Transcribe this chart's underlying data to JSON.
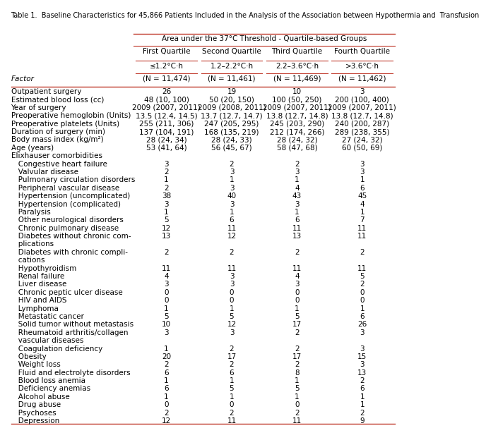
{
  "title": "Table 1.  Baseline Characteristics for 45,866 Patients Included in the Analysis of the Association between Hypothermia and  Transfusion",
  "header_top": "Area under the 37°C Threshold - Quartile-based Groups",
  "col_headers": [
    "First Quartile",
    "Second Quartile",
    "Third Quartile",
    "Fourth Quartile"
  ],
  "col_subheaders": [
    "≤1.2°C·h",
    "1.2–2.2°C·h",
    "2.2–3.6°C·h",
    ">3.6°C·h"
  ],
  "col_n": [
    "(N = 11,474)",
    "(N = 11,461)",
    "(N = 11,469)",
    "(N = 11,462)"
  ],
  "row_label_header": "Factor",
  "rows": [
    [
      "Outpatient surgery",
      "26",
      "19",
      "10",
      "3"
    ],
    [
      "Estimated blood loss (cc)",
      "48 (10, 100)",
      "50 (20, 150)",
      "100 (50, 250)",
      "200 (100, 400)"
    ],
    [
      "Year of surgery",
      "2009 (2007, 2011)",
      "2009 (2008, 2011)",
      "2009 (2007, 2011)",
      "2009 (2007, 2011)"
    ],
    [
      "Preoperative hemoglobin (Units)",
      "13.5 (12.4, 14.5)",
      "13.7 (12.7, 14.7)",
      "13.8 (12.7, 14.8)",
      "13.8 (12.7, 14.8)"
    ],
    [
      "Preoperative platelets (Units)",
      "255 (211, 306)",
      "247 (205, 295)",
      "245 (203, 290)",
      "240 (200, 287)"
    ],
    [
      "Duration of surgery (min)",
      "137 (104, 191)",
      "168 (135, 219)",
      "212 (174, 266)",
      "289 (238, 355)"
    ],
    [
      "Body mass index (kg/m²)",
      "28 (24, 34)",
      "28 (24, 33)",
      "28 (24, 32)",
      "27 (24, 32)"
    ],
    [
      "Age (years)",
      "53 (41, 64)",
      "56 (45, 67)",
      "58 (47, 68)",
      "60 (50, 69)"
    ],
    [
      "Elixhauser comorbidities",
      "",
      "",
      "",
      ""
    ],
    [
      "   Congestive heart failure",
      "3",
      "2",
      "2",
      "3"
    ],
    [
      "   Valvular disease",
      "2",
      "3",
      "3",
      "3"
    ],
    [
      "   Pulmonary circulation disorders",
      "1",
      "1",
      "1",
      "1"
    ],
    [
      "   Peripheral vascular disease",
      "2",
      "3",
      "4",
      "6"
    ],
    [
      "   Hypertension (uncomplicated)",
      "38",
      "40",
      "43",
      "45"
    ],
    [
      "   Hypertension (complicated)",
      "3",
      "3",
      "3",
      "4"
    ],
    [
      "   Paralysis",
      "1",
      "1",
      "1",
      "1"
    ],
    [
      "   Other neurological disorders",
      "5",
      "6",
      "6",
      "7"
    ],
    [
      "   Chronic pulmonary disease",
      "12",
      "11",
      "11",
      "11"
    ],
    [
      "   Diabetes without chronic com-\n   plications",
      "13",
      "12",
      "13",
      "11"
    ],
    [
      "   Diabetes with chronic compli-\n   cations",
      "2",
      "2",
      "2",
      "2"
    ],
    [
      "   Hypothyroidism",
      "11",
      "11",
      "11",
      "11"
    ],
    [
      "   Renal failure",
      "4",
      "3",
      "4",
      "5"
    ],
    [
      "   Liver disease",
      "3",
      "3",
      "3",
      "2"
    ],
    [
      "   Chronic peptic ulcer disease",
      "0",
      "0",
      "0",
      "0"
    ],
    [
      "   HIV and AIDS",
      "0",
      "0",
      "0",
      "0"
    ],
    [
      "   Lymphoma",
      "1",
      "1",
      "1",
      "1"
    ],
    [
      "   Metastatic cancer",
      "5",
      "5",
      "5",
      "6"
    ],
    [
      "   Solid tumor without metastasis",
      "10",
      "12",
      "17",
      "26"
    ],
    [
      "   Rheumatoid arthritis/collagen\n   vascular diseases",
      "3",
      "3",
      "2",
      "3"
    ],
    [
      "   Coagulation deficiency",
      "1",
      "2",
      "2",
      "3"
    ],
    [
      "   Obesity",
      "20",
      "17",
      "17",
      "15"
    ],
    [
      "   Weight loss",
      "2",
      "2",
      "2",
      "3"
    ],
    [
      "   Fluid and electrolyte disorders",
      "6",
      "6",
      "8",
      "13"
    ],
    [
      "   Blood loss anemia",
      "1",
      "1",
      "1",
      "2"
    ],
    [
      "   Deficiency anemias",
      "6",
      "5",
      "5",
      "6"
    ],
    [
      "   Alcohol abuse",
      "1",
      "1",
      "1",
      "1"
    ],
    [
      "   Drug abuse",
      "0",
      "0",
      "0",
      "1"
    ],
    [
      "   Psychoses",
      "2",
      "2",
      "2",
      "2"
    ],
    [
      "   Depression",
      "12",
      "11",
      "11",
      "9"
    ]
  ],
  "bg_color": "#ffffff",
  "text_color": "#000000",
  "header_line_color": "#c0392b",
  "font_size": 7.5,
  "title_font_size": 7.0
}
